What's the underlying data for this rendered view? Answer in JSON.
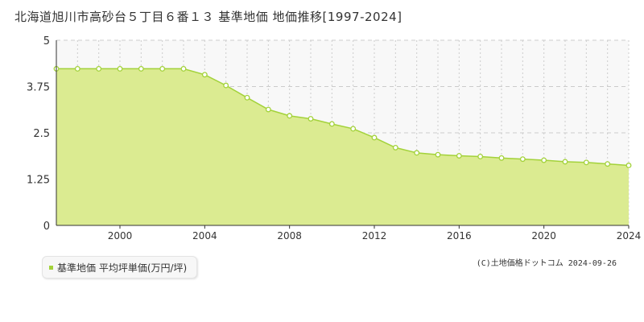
{
  "chart_data": {
    "type": "area",
    "title": "北海道旭川市高砂台５丁目６番１３ 基準地価 地価推移[1997-2024]",
    "x": [
      1997,
      1998,
      1999,
      2000,
      2001,
      2002,
      2003,
      2004,
      2005,
      2006,
      2007,
      2008,
      2009,
      2010,
      2011,
      2012,
      2013,
      2014,
      2015,
      2016,
      2017,
      2018,
      2019,
      2020,
      2021,
      2022,
      2023,
      2024
    ],
    "series": [
      {
        "name": "基準地価 平均坪単価(万円/坪)",
        "values": [
          4.23,
          4.23,
          4.23,
          4.23,
          4.23,
          4.23,
          4.23,
          4.07,
          3.78,
          3.45,
          3.13,
          2.96,
          2.88,
          2.74,
          2.61,
          2.37,
          2.1,
          1.96,
          1.91,
          1.88,
          1.86,
          1.82,
          1.79,
          1.76,
          1.72,
          1.7,
          1.66,
          1.62
        ]
      }
    ],
    "xlim": [
      1997,
      2024
    ],
    "ylim": [
      0,
      5
    ],
    "xticks": [
      2000,
      2004,
      2008,
      2012,
      2016,
      2020,
      2024
    ],
    "xtick_labels": [
      "2000",
      "2004",
      "2008",
      "2012",
      "2016",
      "2020",
      "2024"
    ],
    "yticks": [
      0,
      1.25,
      2.5,
      3.75,
      5
    ],
    "ytick_labels": [
      "0",
      "1.25",
      "2.5",
      "3.75",
      "5"
    ],
    "grid": true,
    "legend_position": "bottom-left",
    "colors": {
      "area_fill": "#dbeb91",
      "line": "#a3d23a",
      "upper_band": "#f8f8f8",
      "grid": "#cccccc",
      "axis": "#333333"
    }
  },
  "legend": {
    "label": "基準地価 平均坪単価(万円/坪)"
  },
  "credit": "(C)土地価格ドットコム 2024-09-26"
}
